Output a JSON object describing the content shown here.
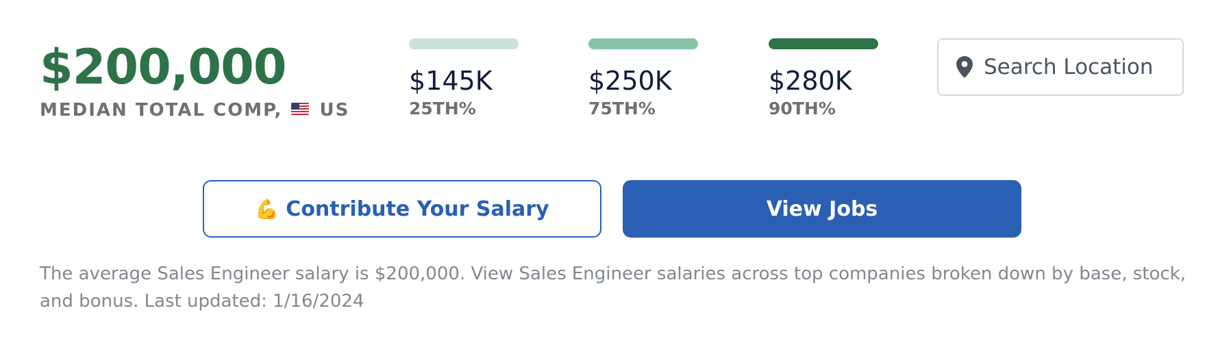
{
  "median": {
    "value": "$200,000",
    "label_prefix": "MEDIAN TOTAL COMP,",
    "country": "US",
    "flag_icon": "us-flag-icon"
  },
  "percentiles": [
    {
      "value": "$145K",
      "label": "25TH%",
      "color": "#c9e3d8"
    },
    {
      "value": "$250K",
      "label": "75TH%",
      "color": "#86c3a4"
    },
    {
      "value": "$280K",
      "label": "90TH%",
      "color": "#2e7248"
    }
  ],
  "search": {
    "placeholder": "Search Location",
    "value": "",
    "icon": "location-pin-icon"
  },
  "buttons": {
    "contribute": {
      "emoji": "💪",
      "label": "Contribute Your Salary"
    },
    "view_jobs": {
      "label": "View Jobs"
    }
  },
  "description": "The average Sales Engineer salary is $200,000. View Sales Engineer salaries across top companies broken down by base, stock, and bonus. Last updated: 1/16/2024",
  "colors": {
    "brand_green": "#2e7248",
    "brand_blue": "#2a5fb4",
    "label_gray": "#707070",
    "text_gray": "#808890"
  }
}
